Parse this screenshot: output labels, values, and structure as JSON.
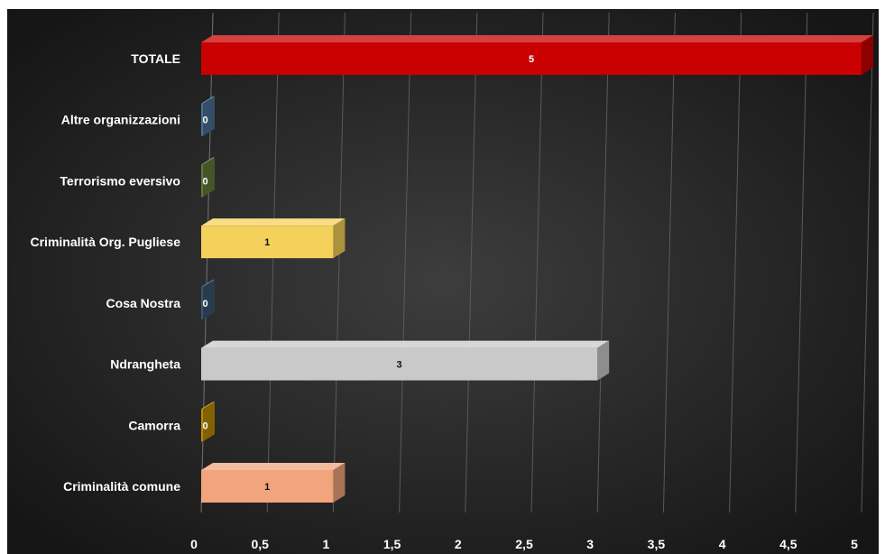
{
  "chart_data": {
    "type": "bar",
    "orientation": "horizontal",
    "style": "3d",
    "categories": [
      "TOTALE",
      "Altre organizzazioni",
      "Terrorismo eversivo",
      "Criminalità Org. Pugliese",
      "Cosa Nostra",
      "Ndrangheta",
      "Camorra",
      "Criminalità comune"
    ],
    "values": [
      5,
      0,
      0,
      1,
      0,
      3,
      0,
      1
    ],
    "data_labels": [
      "5",
      "0",
      "0",
      "1",
      "0",
      "3",
      "0",
      "1"
    ],
    "colors": [
      "#c80000",
      "#4a6f94",
      "#5f7a3a",
      "#f4d15a",
      "#3b5570",
      "#c9c9c9",
      "#b98a00",
      "#f2a47c"
    ],
    "xlim": [
      0,
      5
    ],
    "x_ticks": [
      0,
      0.5,
      1,
      1.5,
      2,
      2.5,
      3,
      3.5,
      4,
      4.5,
      5
    ],
    "x_tick_labels": [
      "0",
      "0,5",
      "1",
      "1,5",
      "2",
      "2,5",
      "3",
      "3,5",
      "4",
      "4,5",
      "5"
    ],
    "title": "",
    "xlabel": "",
    "ylabel": "",
    "grid": true,
    "legend": "none",
    "background": "#1c1c1c"
  }
}
